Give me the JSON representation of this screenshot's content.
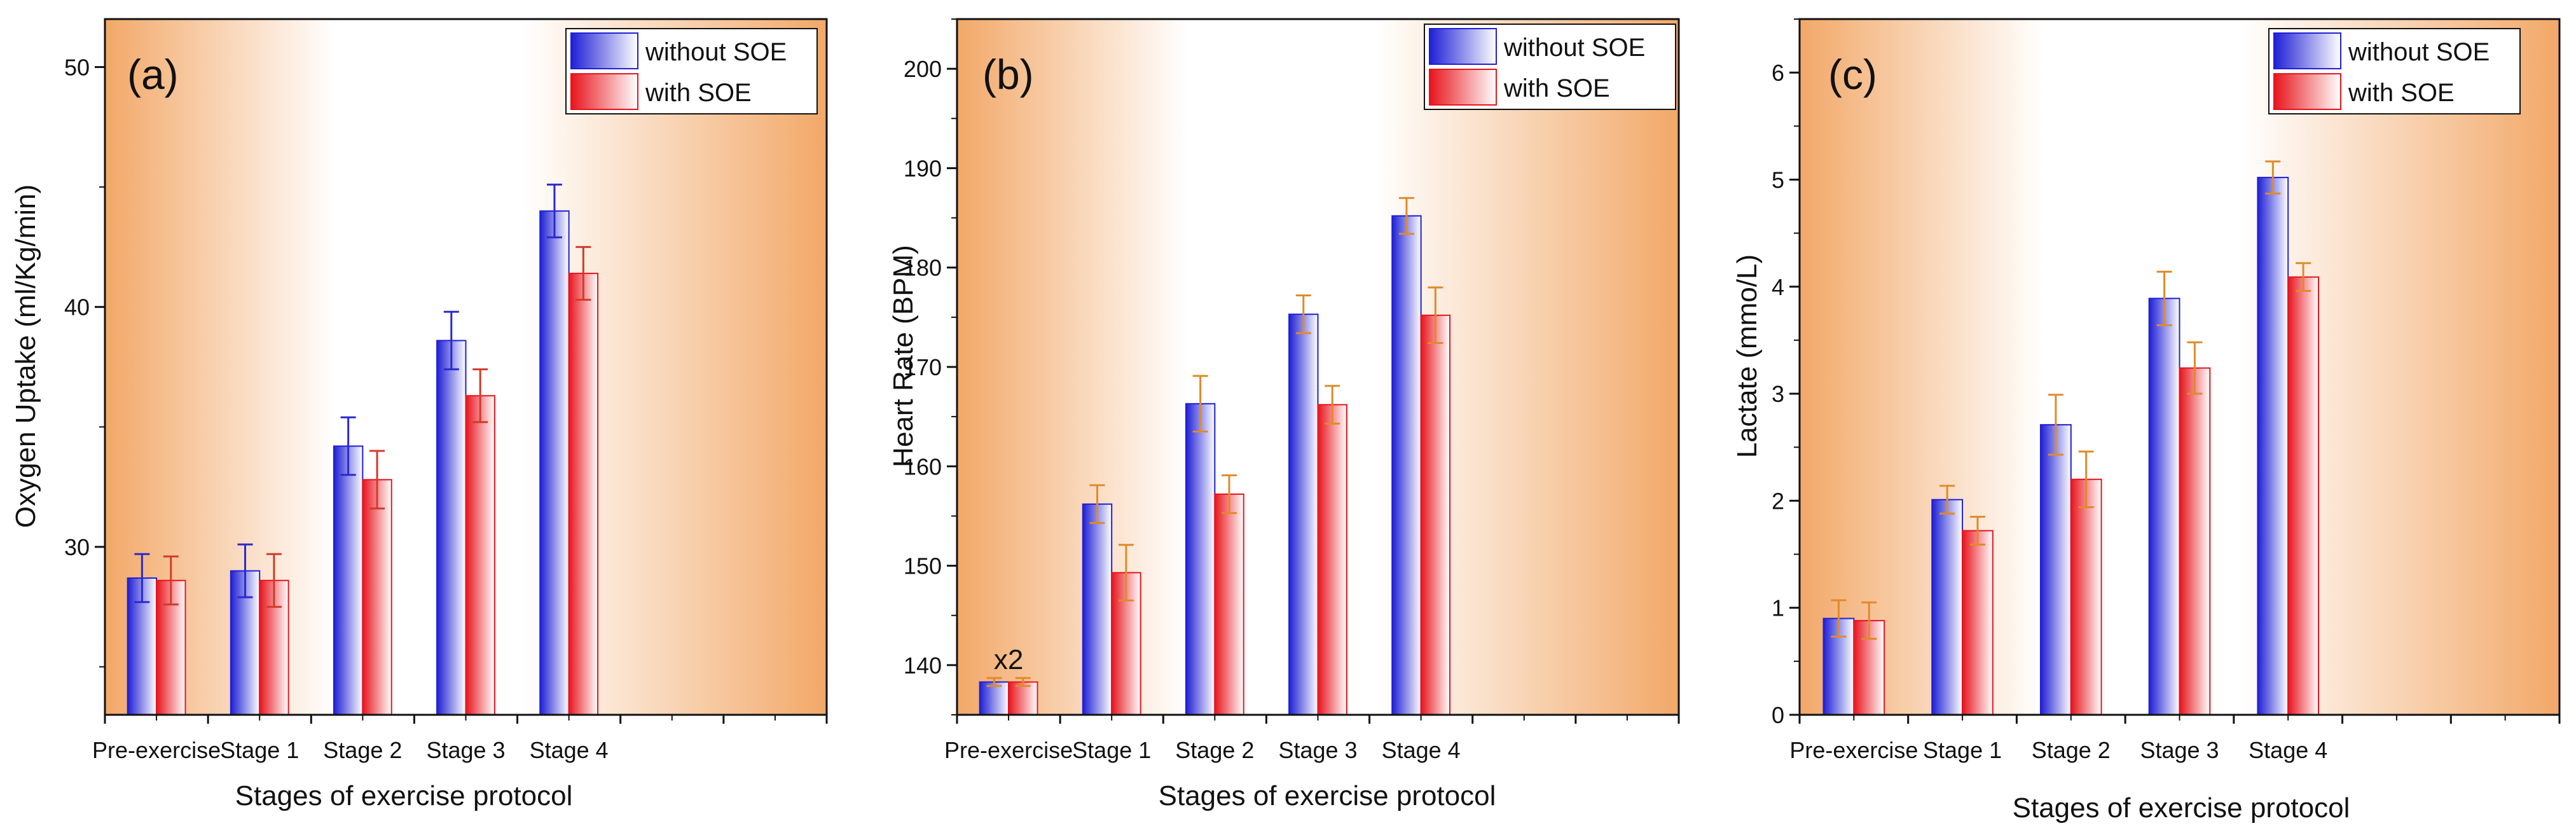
{
  "colors": {
    "plot_edge": "#f2a868",
    "plot_center": "#ffffff",
    "blue_dark": "#1f1fd6",
    "red_dark": "#e8141c",
    "err_blue": "#2a2acc",
    "err_red": "#d23a2a",
    "err_orange": "#e08a2a"
  },
  "chart_data": [
    {
      "type": "bar",
      "panel_label": "(a)",
      "title": "",
      "xlabel": "Stages of exercise protocol",
      "ylabel": "Oxygen Uptake (ml/Kg/min)",
      "ylim": [
        23,
        52
      ],
      "yticks": [
        30,
        40,
        50
      ],
      "ytick_labels": [
        "30",
        "40",
        "50"
      ],
      "minor_y_step": 5,
      "categories": [
        "Pre-exercise",
        "Stage 1",
        "Stage 2",
        "Stage 3",
        "Stage 4"
      ],
      "n_slots": 7,
      "series": [
        {
          "name": "without SOE",
          "values": [
            28.7,
            29.0,
            34.2,
            38.6,
            44.0
          ],
          "errors": [
            1.0,
            1.1,
            1.2,
            1.2,
            1.1
          ]
        },
        {
          "name": "with SOE",
          "values": [
            28.6,
            28.6,
            32.8,
            36.3,
            41.4
          ],
          "errors": [
            1.0,
            1.1,
            1.2,
            1.1,
            1.1
          ]
        }
      ],
      "error_style": "blue-red",
      "legend": {
        "position": "top-right",
        "entries": [
          "without SOE",
          "with SOE"
        ]
      },
      "annotations": []
    },
    {
      "type": "bar",
      "panel_label": "(b)",
      "title": "",
      "xlabel": "Stages of exercise protocol",
      "ylabel": "Heart Rate (BPM)",
      "ylim": [
        135,
        205
      ],
      "yticks": [
        140,
        150,
        160,
        170,
        180,
        190,
        200
      ],
      "ytick_labels": [
        "140",
        "150",
        "160",
        "170",
        "180",
        "190",
        "200"
      ],
      "minor_y_step": 5,
      "categories": [
        "Pre-exercise",
        "Stage 1",
        "Stage 2",
        "Stage 3",
        "Stage 4"
      ],
      "n_slots": 7,
      "series": [
        {
          "name": "without SOE",
          "values": [
            138.3,
            156.2,
            166.3,
            175.3,
            185.2
          ],
          "errors": [
            0.4,
            1.9,
            2.8,
            1.9,
            1.8
          ]
        },
        {
          "name": "with SOE",
          "values": [
            138.3,
            149.3,
            157.2,
            166.2,
            175.2
          ],
          "errors": [
            0.4,
            2.8,
            1.9,
            1.9,
            2.8
          ]
        }
      ],
      "error_style": "orange",
      "legend": {
        "position": "top-right",
        "entries": [
          "without SOE",
          "with SOE"
        ]
      },
      "annotations": [
        {
          "text": "x2",
          "category": "Pre-exercise"
        }
      ]
    },
    {
      "type": "bar",
      "panel_label": "(c)",
      "title": "",
      "xlabel": "Stages of exercise protocol",
      "ylabel": "Lactate (mmo/L)",
      "ylim": [
        0,
        6.5
      ],
      "yticks": [
        0,
        1,
        2,
        3,
        4,
        5,
        6
      ],
      "ytick_labels": [
        "0",
        "1",
        "2",
        "3",
        "4",
        "5",
        "6"
      ],
      "minor_y_step": 0.5,
      "categories": [
        "Pre-exercise",
        "Stage 1",
        "Stage 2",
        "Stage 3",
        "Stage 4"
      ],
      "n_slots": 7,
      "series": [
        {
          "name": "without SOE",
          "values": [
            0.9,
            2.01,
            2.71,
            3.89,
            5.02
          ],
          "errors": [
            0.17,
            0.13,
            0.28,
            0.25,
            0.15
          ]
        },
        {
          "name": "with SOE",
          "values": [
            0.88,
            1.72,
            2.2,
            3.24,
            4.09
          ],
          "errors": [
            0.17,
            0.13,
            0.26,
            0.24,
            0.13
          ]
        }
      ],
      "error_style": "orange",
      "legend": {
        "position": "top-right",
        "entries": [
          "without SOE",
          "with SOE"
        ]
      },
      "annotations": []
    }
  ]
}
